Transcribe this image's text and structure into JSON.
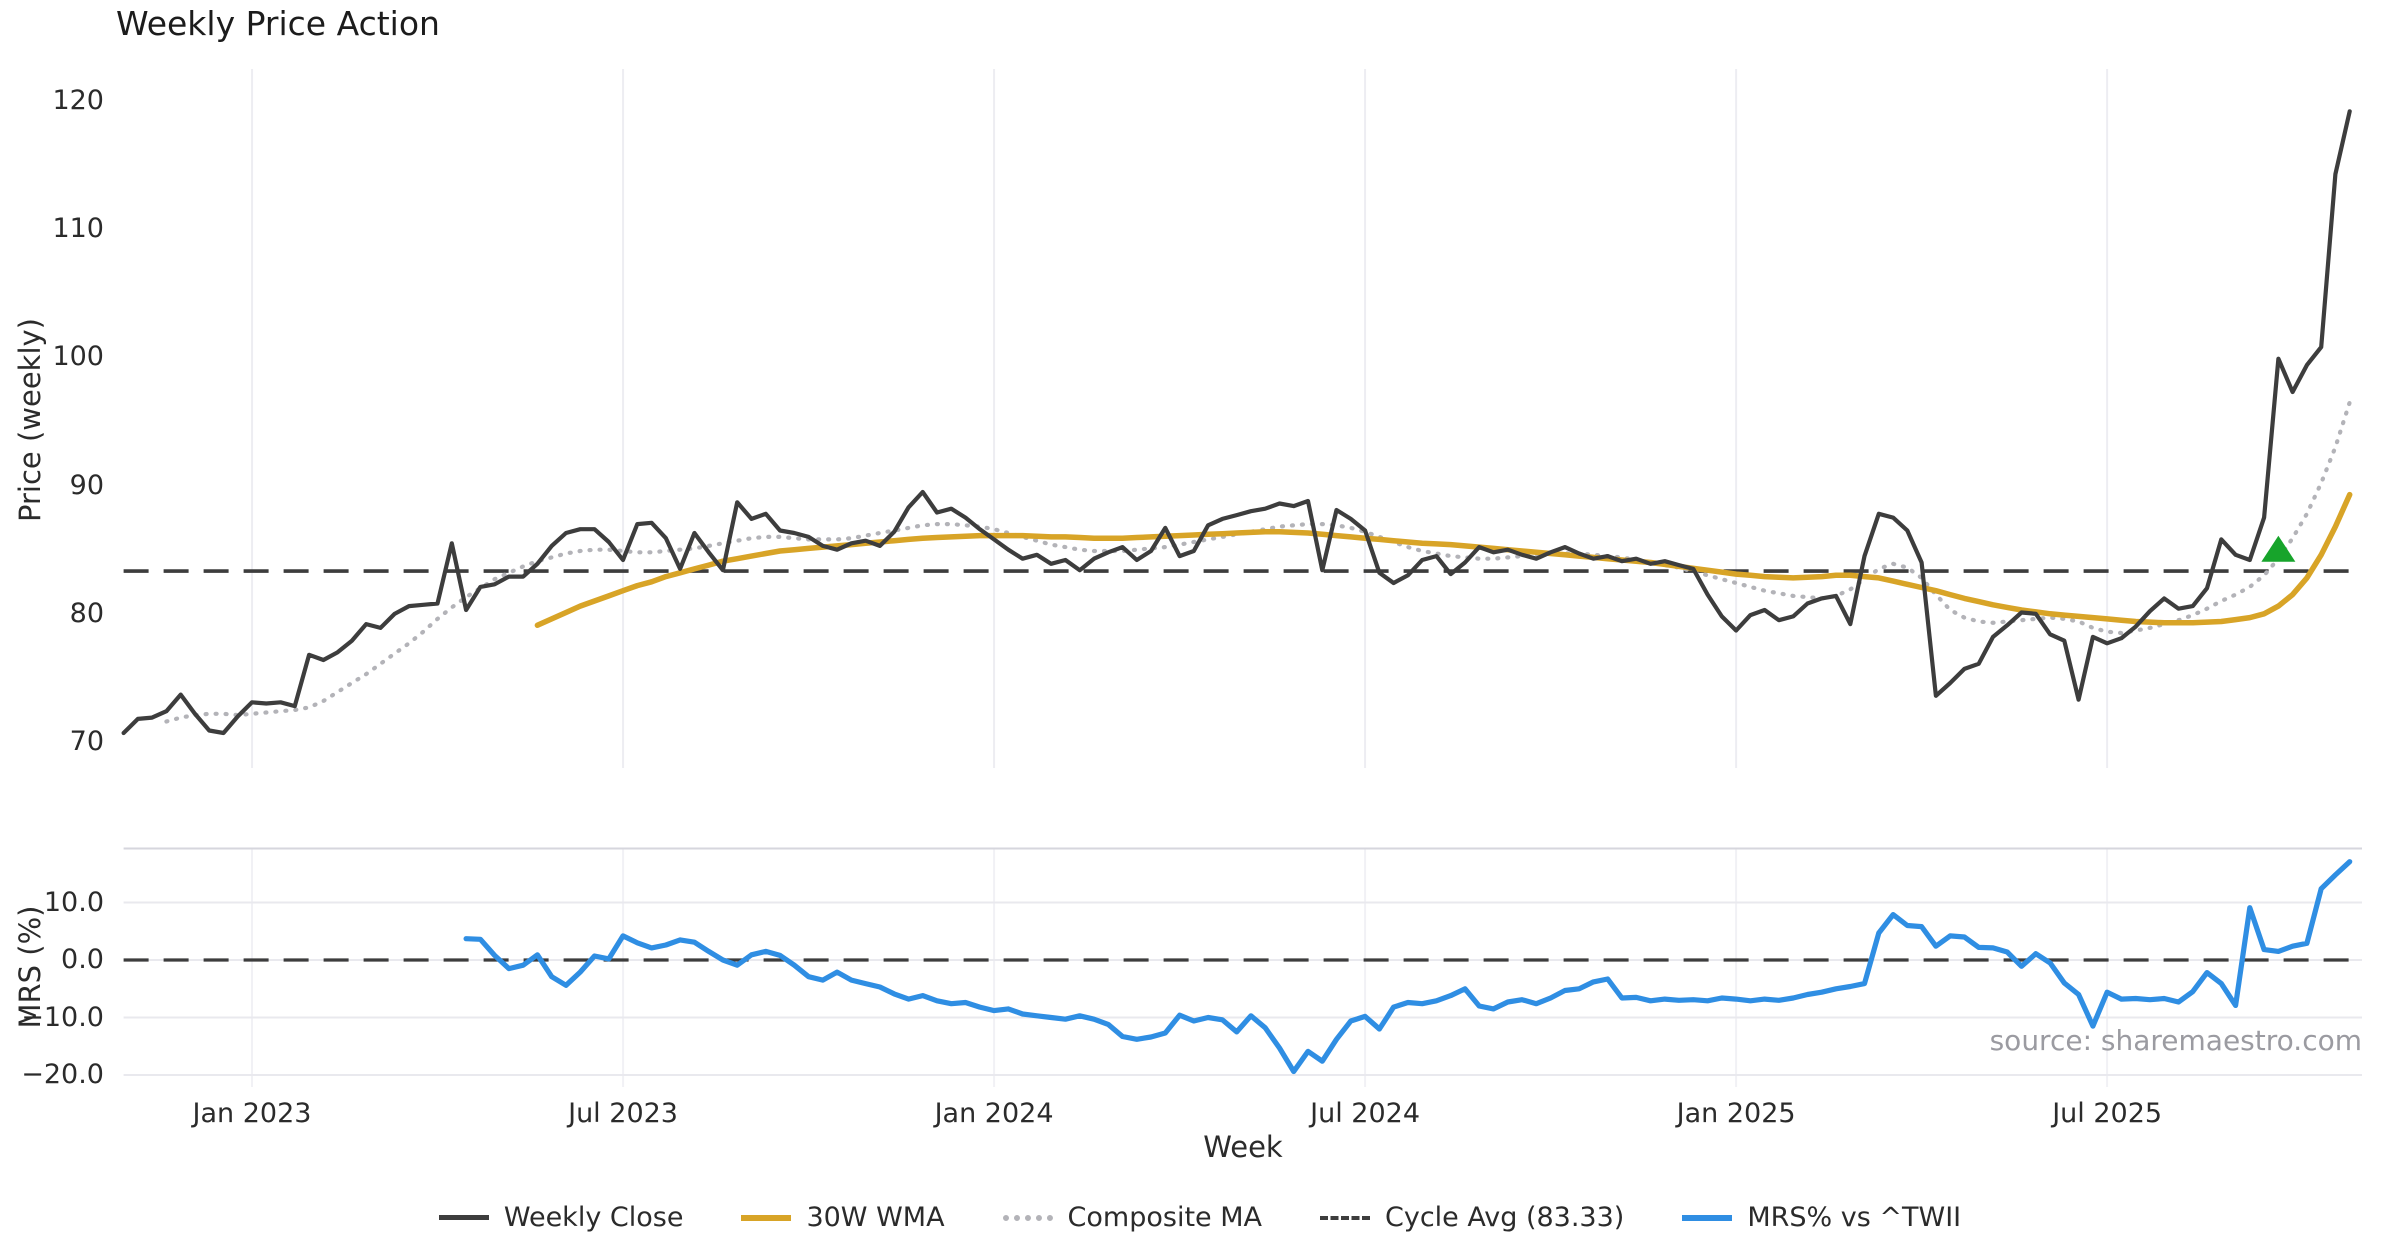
{
  "title": "Weekly Price Action",
  "source_note": "source: sharemaestro.com",
  "colors": {
    "weekly_close": "#3d3d3d",
    "wma_30w": "#d8a427",
    "composite_ma": "#b3b3b8",
    "cycle_avg": "#3d3d3d",
    "mrs_line": "#2f8ee3",
    "signal_marker": "#17a42b",
    "grid": "#ededf2",
    "separator": "#d6d6dd",
    "background": "#ffffff"
  },
  "chart_data": {
    "type": "line",
    "title": "Weekly Price Action",
    "xlabel": "Week",
    "x_unit": "weekly (one point per week), Nov 2022 - Nov 2025",
    "weeks_total": 157,
    "grid": "vertical in both panels, horizontal in lower panel only",
    "legend_position": "bottom center",
    "x_ticks": [
      {
        "week": 9,
        "label": "Jan 2023"
      },
      {
        "week": 35,
        "label": "Jul 2023"
      },
      {
        "week": 61,
        "label": "Jan 2024"
      },
      {
        "week": 87,
        "label": "Jul 2024"
      },
      {
        "week": 113,
        "label": "Jan 2025"
      },
      {
        "week": 139,
        "label": "Jul 2025"
      }
    ],
    "legend": [
      "Weekly Close",
      "30W WMA",
      "Composite MA",
      "Cycle Avg (83.33)",
      "MRS% vs ^TWII"
    ],
    "panels": [
      {
        "name": "price",
        "ylabel": "Price (weekly)",
        "ylim": [
          68,
          122.5
        ],
        "y_ticks": [
          {
            "value": 120,
            "label": "120"
          },
          {
            "value": 110,
            "label": "110"
          },
          {
            "value": 100,
            "label": "100"
          },
          {
            "value": 90,
            "label": "90"
          },
          {
            "value": 80,
            "label": "80"
          },
          {
            "value": 70,
            "label": "70"
          }
        ],
        "cycle_avg": 83.33,
        "marker": {
          "type": "triangle-up",
          "color": "#17a42b",
          "week": 151,
          "price": 85.0
        },
        "series": [
          {
            "name": "Weekly Close",
            "color": "#3d3d3d",
            "style": "solid",
            "width": 4.2,
            "start_index": 0,
            "values": [
              70.7,
              71.8,
              71.9,
              72.4,
              73.7,
              72.2,
              70.9,
              70.7,
              72.0,
              73.1,
              73.0,
              73.1,
              72.8,
              76.8,
              76.4,
              77.0,
              77.9,
              79.2,
              78.9,
              80.0,
              80.6,
              80.7,
              80.8,
              85.5,
              80.3,
              82.1,
              82.3,
              82.9,
              82.9,
              83.9,
              85.3,
              86.3,
              86.6,
              86.6,
              85.6,
              84.2,
              87.0,
              87.1,
              85.9,
              83.5,
              86.3,
              84.8,
              83.4,
              88.7,
              87.4,
              87.8,
              86.5,
              86.3,
              86.0,
              85.3,
              85.0,
              85.5,
              85.7,
              85.3,
              86.4,
              88.3,
              89.5,
              87.9,
              88.2,
              87.5,
              86.6,
              85.8,
              85.0,
              84.3,
              84.6,
              83.9,
              84.2,
              83.4,
              84.3,
              84.8,
              85.2,
              84.2,
              84.9,
              86.7,
              84.5,
              84.9,
              86.9,
              87.4,
              87.7,
              88.0,
              88.2,
              88.6,
              88.4,
              88.8,
              83.4,
              88.1,
              87.4,
              86.5,
              83.2,
              82.4,
              83.0,
              84.2,
              84.5,
              83.1,
              84.0,
              85.2,
              84.8,
              85.0,
              84.6,
              84.3,
              84.8,
              85.2,
              84.7,
              84.3,
              84.5,
              84.1,
              84.3,
              83.9,
              84.1,
              83.8,
              83.5,
              81.5,
              79.8,
              78.7,
              79.9,
              80.3,
              79.5,
              79.8,
              80.8,
              81.2,
              81.4,
              79.2,
              84.5,
              87.8,
              87.5,
              86.5,
              84.0,
              73.6,
              74.6,
              75.7,
              76.1,
              78.2,
              79.1,
              80.1,
              80.0,
              78.4,
              77.9,
              73.3,
              78.2,
              77.7,
              78.1,
              79.0,
              80.2,
              81.2,
              80.4,
              80.6,
              82.0,
              85.8,
              84.6,
              84.2,
              87.5,
              99.9,
              97.3,
              99.4,
              100.8,
              114.3,
              119.2
            ]
          },
          {
            "name": "30W WMA",
            "color": "#d8a427",
            "style": "solid",
            "width": 5.5,
            "start_index": 29,
            "values": [
              79.1,
              79.6,
              80.1,
              80.6,
              81.0,
              81.4,
              81.8,
              82.2,
              82.5,
              82.9,
              83.2,
              83.5,
              83.8,
              84.1,
              84.3,
              84.5,
              84.7,
              84.9,
              85.0,
              85.1,
              85.2,
              85.3,
              85.4,
              85.5,
              85.6,
              85.7,
              85.8,
              85.9,
              85.95,
              86.0,
              86.05,
              86.1,
              86.1,
              86.1,
              86.1,
              86.05,
              86.0,
              86.0,
              85.95,
              85.9,
              85.9,
              85.9,
              85.95,
              86.0,
              86.05,
              86.1,
              86.15,
              86.2,
              86.25,
              86.3,
              86.35,
              86.4,
              86.4,
              86.35,
              86.3,
              86.2,
              86.1,
              86.0,
              85.9,
              85.8,
              85.7,
              85.6,
              85.5,
              85.45,
              85.4,
              85.3,
              85.2,
              85.1,
              85.0,
              84.9,
              84.8,
              84.7,
              84.6,
              84.5,
              84.4,
              84.3,
              84.2,
              84.1,
              84.0,
              83.85,
              83.7,
              83.55,
              83.4,
              83.25,
              83.1,
              83.0,
              82.9,
              82.85,
              82.8,
              82.85,
              82.9,
              83.0,
              83.0,
              82.9,
              82.8,
              82.55,
              82.3,
              82.05,
              81.8,
              81.5,
              81.2,
              80.95,
              80.7,
              80.5,
              80.3,
              80.15,
              80.0,
              79.9,
              79.8,
              79.7,
              79.6,
              79.5,
              79.4,
              79.35,
              79.3,
              79.3,
              79.3,
              79.35,
              79.4,
              79.55,
              79.7,
              80.0,
              80.6,
              81.5,
              82.8,
              84.6,
              86.8,
              89.3
            ]
          },
          {
            "name": "Composite MA",
            "color": "#b3b3b8",
            "style": "dotted",
            "width": 4.2,
            "start_index": 3,
            "values": [
              71.6,
              71.9,
              72.1,
              72.2,
              72.2,
              72.1,
              72.2,
              72.3,
              72.4,
              72.5,
              72.7,
              73.2,
              73.9,
              74.6,
              75.3,
              76.1,
              76.9,
              77.7,
              78.6,
              79.6,
              80.5,
              81.3,
              82.0,
              82.7,
              83.2,
              83.7,
              84.1,
              84.4,
              84.7,
              84.9,
              85.0,
              85.0,
              84.9,
              84.8,
              84.8,
              84.9,
              85.0,
              85.1,
              85.3,
              85.5,
              85.7,
              85.9,
              86.0,
              86.0,
              85.9,
              85.8,
              85.8,
              85.8,
              85.9,
              86.1,
              86.3,
              86.5,
              86.7,
              86.9,
              87.0,
              87.0,
              86.9,
              86.8,
              86.6,
              86.3,
              86.0,
              85.7,
              85.4,
              85.2,
              85.0,
              84.9,
              84.9,
              84.9,
              85.0,
              85.1,
              85.2,
              85.4,
              85.6,
              85.8,
              86.0,
              86.2,
              86.4,
              86.6,
              86.8,
              86.9,
              87.0,
              87.0,
              86.9,
              86.7,
              86.4,
              86.0,
              85.6,
              85.2,
              84.9,
              84.7,
              84.5,
              84.4,
              84.3,
              84.3,
              84.4,
              84.5,
              84.6,
              84.7,
              84.7,
              84.7,
              84.6,
              84.5,
              84.4,
              84.2,
              84.0,
              83.8,
              83.6,
              83.3,
              83.0,
              82.7,
              82.4,
              82.1,
              81.8,
              81.6,
              81.4,
              81.3,
              81.2,
              81.4,
              81.9,
              82.7,
              83.5,
              83.9,
              83.6,
              82.8,
              81.5,
              80.3,
              79.7,
              79.4,
              79.3,
              79.4,
              79.5,
              79.6,
              79.7,
              79.6,
              79.4,
              78.9,
              78.6,
              78.5,
              78.7,
              78.9,
              79.2,
              79.5,
              79.9,
              80.4,
              81.0,
              81.5,
              82.1,
              83.0,
              84.3,
              85.9,
              87.8,
              90.2,
              93.0,
              96.5
            ]
          },
          {
            "name": "Cycle Avg (83.33)",
            "color": "#3d3d3d",
            "style": "dashed",
            "width": 3.6,
            "value": 83.33
          }
        ]
      },
      {
        "name": "mrs",
        "ylabel": "MRS (%)",
        "ylim": [
          -22,
          19.5
        ],
        "zero_line": 0.0,
        "y_ticks": [
          {
            "value": 10,
            "label": "10.0"
          },
          {
            "value": 0,
            "label": "0.0"
          },
          {
            "value": -10,
            "label": "−10.0"
          },
          {
            "value": -20,
            "label": "−20.0"
          }
        ],
        "series": [
          {
            "name": "MRS% vs ^TWII",
            "color": "#2f8ee3",
            "style": "solid",
            "width": 5.2,
            "start_index": 24,
            "values": [
              3.7,
              3.6,
              0.8,
              -1.5,
              -0.9,
              0.9,
              -2.9,
              -4.4,
              -2.1,
              0.7,
              0.2,
              4.2,
              3.0,
              2.1,
              2.6,
              3.5,
              3.1,
              1.5,
              0.0,
              -0.9,
              0.9,
              1.5,
              0.8,
              -0.9,
              -2.9,
              -3.5,
              -2.1,
              -3.5,
              -4.1,
              -4.7,
              -5.9,
              -6.8,
              -6.2,
              -7.1,
              -7.6,
              -7.4,
              -8.2,
              -8.8,
              -8.5,
              -9.4,
              -9.7,
              -10.0,
              -10.3,
              -9.7,
              -10.3,
              -11.2,
              -13.3,
              -13.8,
              -13.4,
              -12.7,
              -9.6,
              -10.6,
              -10.0,
              -10.4,
              -12.5,
              -9.7,
              -11.8,
              -15.3,
              -19.4,
              -15.9,
              -17.6,
              -13.8,
              -10.6,
              -9.8,
              -12.0,
              -8.2,
              -7.4,
              -7.6,
              -7.1,
              -6.2,
              -5.0,
              -8.0,
              -8.5,
              -7.3,
              -6.9,
              -7.6,
              -6.6,
              -5.3,
              -5.0,
              -3.8,
              -3.3,
              -6.6,
              -6.5,
              -7.1,
              -6.8,
              -7.0,
              -6.9,
              -7.1,
              -6.6,
              -6.8,
              -7.1,
              -6.8,
              -7.0,
              -6.6,
              -6.0,
              -5.6,
              -5.0,
              -4.6,
              -4.1,
              4.7,
              7.9,
              6.0,
              5.8,
              2.4,
              4.2,
              4.0,
              2.2,
              2.1,
              1.4,
              -1.1,
              1.1,
              -0.5,
              -4.0,
              -6.0,
              -11.5,
              -5.6,
              -6.8,
              -6.7,
              -6.9,
              -6.7,
              -7.3,
              -5.5,
              -2.2,
              -4.1,
              -7.9,
              9.1,
              1.8,
              1.5,
              2.4,
              2.9,
              12.4,
              14.8,
              17.1
            ]
          }
        ]
      }
    ]
  }
}
